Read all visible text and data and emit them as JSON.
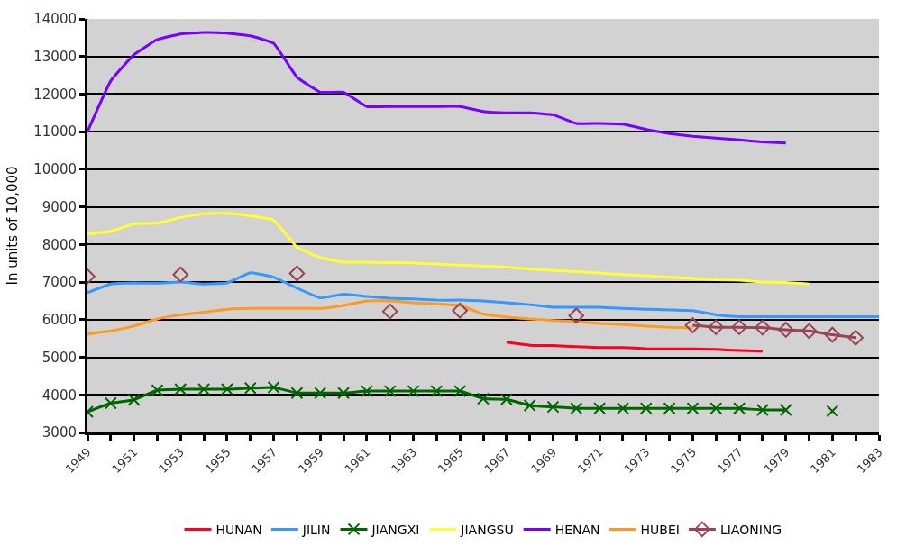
{
  "chart_data": {
    "type": "line",
    "ylabel": "In units of 10,000",
    "xlim": [
      1949,
      1983
    ],
    "xticks": [
      1949,
      1951,
      1953,
      1955,
      1957,
      1959,
      1961,
      1963,
      1965,
      1967,
      1969,
      1971,
      1973,
      1975,
      1977,
      1979,
      1981,
      1983
    ],
    "ylim": [
      3000,
      14000
    ],
    "yticks": [
      3000,
      4000,
      5000,
      6000,
      7000,
      8000,
      9000,
      10000,
      11000,
      12000,
      13000,
      14000
    ],
    "grid": "y",
    "legend": "bottom",
    "marker": "none",
    "line_style": "solid",
    "series": [
      {
        "name": "HUNAN",
        "color": "#ff0022",
        "x": [
          1967,
          1968,
          1969,
          1970,
          1971,
          1972,
          1973,
          1974,
          1975,
          1976,
          1977,
          1978
        ],
        "values": [
          5400,
          5320,
          5310,
          5280,
          5260,
          5260,
          5230,
          5220,
          5220,
          5210,
          5180,
          5160
        ]
      },
      {
        "name": "JILIN",
        "color": "#3399ff",
        "x": [
          1949,
          1950,
          1951,
          1952,
          1953,
          1954,
          1955,
          1956,
          1957,
          1958,
          1959,
          1960,
          1961,
          1962,
          1963,
          1964,
          1965,
          1966,
          1967,
          1968,
          1969,
          1970,
          1971,
          1972,
          1973,
          1974,
          1975,
          1976,
          1977,
          1978,
          1979,
          1980,
          1981,
          1982,
          1983
        ],
        "values": [
          6720,
          6950,
          6980,
          6970,
          7000,
          6950,
          6980,
          7250,
          7130,
          6840,
          6580,
          6680,
          6620,
          6570,
          6550,
          6520,
          6520,
          6500,
          6450,
          6400,
          6330,
          6330,
          6330,
          6300,
          6280,
          6260,
          6240,
          6130,
          6080,
          6080,
          6080,
          6080,
          6080,
          6080,
          6080
        ]
      },
      {
        "name": "JIANGXI",
        "color": "#006600",
        "marker": "cross",
        "x": [
          1949,
          1950,
          1951,
          1952,
          1953,
          1954,
          1955,
          1956,
          1957,
          1958,
          1959,
          1960,
          1961,
          1962,
          1963,
          1964,
          1965,
          1966,
          1967,
          1968,
          1969,
          1970,
          1971,
          1972,
          1973,
          1974,
          1975,
          1976,
          1977,
          1978,
          1979,
          1980,
          1981
        ],
        "values": [
          3550,
          3780,
          3870,
          4120,
          4150,
          4150,
          4150,
          4180,
          4200,
          4050,
          4050,
          4050,
          4100,
          4100,
          4100,
          4100,
          4100,
          3900,
          3880,
          3720,
          3680,
          3640,
          3640,
          3640,
          3640,
          3640,
          3640,
          3640,
          3640,
          3600,
          3600,
          null,
          3570
        ]
      },
      {
        "name": "JIANGSU",
        "color": "#ffff33",
        "x": [
          1949,
          1950,
          1951,
          1952,
          1953,
          1954,
          1955,
          1956,
          1957,
          1958,
          1959,
          1960,
          1961,
          1962,
          1963,
          1964,
          1965,
          1966,
          1967,
          1968,
          1969,
          1970,
          1971,
          1972,
          1973,
          1974,
          1975,
          1976,
          1977,
          1978,
          1979,
          1980
        ],
        "values": [
          8280,
          8350,
          8550,
          8570,
          8720,
          8820,
          8830,
          8760,
          8650,
          7930,
          7650,
          7530,
          7530,
          7520,
          7510,
          7480,
          7450,
          7430,
          7400,
          7350,
          7310,
          7280,
          7240,
          7200,
          7170,
          7130,
          7100,
          7060,
          7050,
          7000,
          6990,
          6950
        ]
      },
      {
        "name": "HENAN",
        "color": "#7700ff",
        "x": [
          1949,
          1950,
          1951,
          1952,
          1953,
          1954,
          1955,
          1956,
          1957,
          1958,
          1959,
          1960,
          1961,
          1962,
          1963,
          1964,
          1965,
          1966,
          1967,
          1968,
          1969,
          1970,
          1971,
          1972,
          1973,
          1974,
          1975,
          1976,
          1977,
          1978,
          1979
        ],
        "values": [
          11000,
          12350,
          13050,
          13450,
          13600,
          13640,
          13620,
          13550,
          13350,
          12450,
          12050,
          12050,
          11670,
          11670,
          11670,
          11670,
          11670,
          11540,
          11500,
          11500,
          11450,
          11220,
          11220,
          11200,
          11060,
          10950,
          10880,
          10830,
          10780,
          10730,
          10700
        ]
      },
      {
        "name": "HUBEI",
        "color": "#ff9922",
        "x": [
          1949,
          1950,
          1951,
          1952,
          1953,
          1954,
          1955,
          1956,
          1957,
          1958,
          1959,
          1960,
          1961,
          1962,
          1963,
          1964,
          1965,
          1966,
          1967,
          1968,
          1969,
          1970,
          1971,
          1972,
          1973,
          1974,
          1975
        ],
        "values": [
          5620,
          5700,
          5830,
          6020,
          6130,
          6200,
          6280,
          6300,
          6300,
          6300,
          6300,
          6380,
          6500,
          6500,
          6450,
          6420,
          6380,
          6150,
          6070,
          6020,
          5980,
          5950,
          5900,
          5870,
          5830,
          5800,
          5780
        ]
      },
      {
        "name": "LIAONING",
        "color": "#994455",
        "marker": "diamond",
        "x": [
          1949,
          1950,
          1953,
          1954,
          1958,
          1959,
          1962,
          1963,
          1965,
          1966,
          1970,
          1971,
          1975,
          1976,
          1977,
          1978,
          1979,
          1980,
          1981,
          1982
        ],
        "values": [
          7150,
          null,
          7200,
          null,
          7230,
          null,
          6220,
          null,
          6240,
          null,
          6110,
          null,
          5850,
          5800,
          5800,
          5790,
          5730,
          5700,
          5600,
          5520
        ]
      }
    ]
  }
}
